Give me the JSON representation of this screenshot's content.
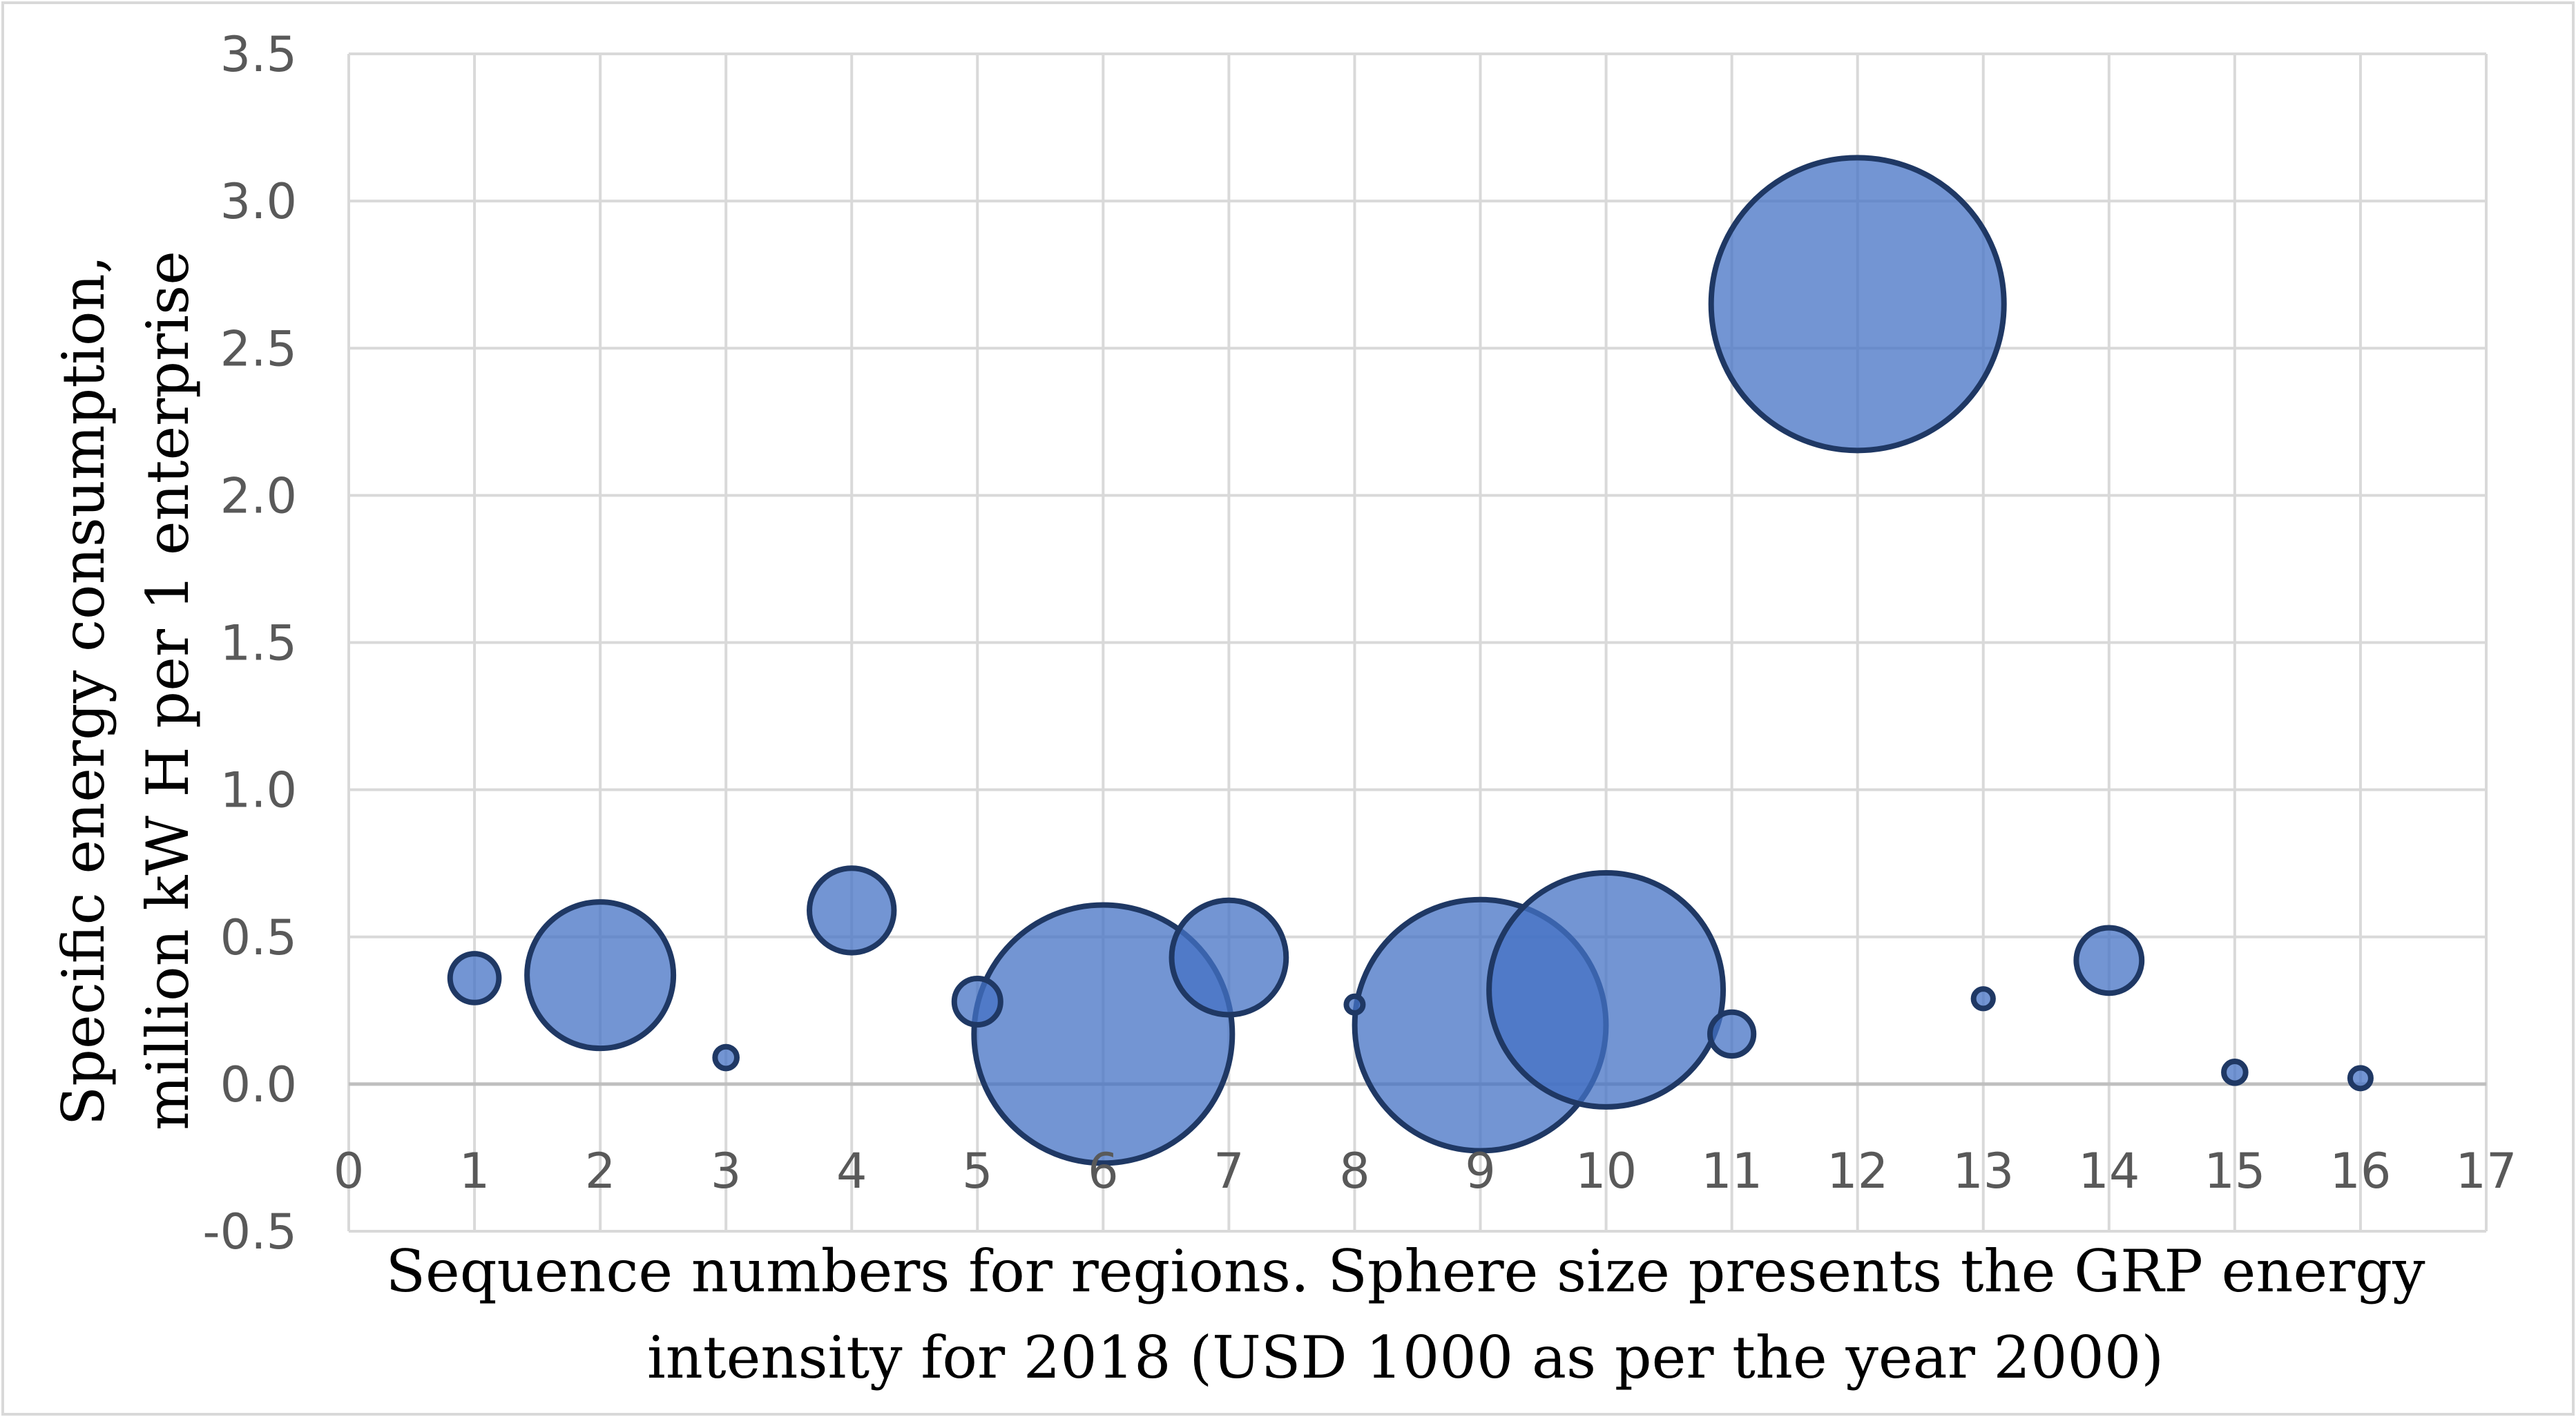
{
  "chart_data": {
    "type": "bubble",
    "title": "",
    "xlabel_lines": [
      "Sequence numbers for regions. Sphere size presents the GRP energy",
      "intensity for 2018 (USD 1000 as per the year 2000)"
    ],
    "ylabel_lines": [
      "Specific energy consumption,",
      "million kW H per 1 enterprise"
    ],
    "xlim": [
      0,
      17
    ],
    "ylim": [
      -0.5,
      3.5
    ],
    "x_ticks": [
      0,
      1,
      2,
      3,
      4,
      5,
      6,
      7,
      8,
      9,
      10,
      11,
      12,
      13,
      14,
      15,
      16,
      17
    ],
    "y_ticks": [
      -0.5,
      0.0,
      0.5,
      1.0,
      1.5,
      2.0,
      2.5,
      3.0,
      3.5
    ],
    "grid": true,
    "colors": {
      "fill": "#4472c4",
      "stroke": "#1f3864",
      "grid": "#d9d9d9",
      "tick_text": "#595959"
    },
    "series": [
      {
        "name": "Regions",
        "points": [
          {
            "x": 1,
            "y": 0.36,
            "size": 0.1
          },
          {
            "x": 2,
            "y": 0.37,
            "size": 0.9
          },
          {
            "x": 3,
            "y": 0.09,
            "size": 0.02
          },
          {
            "x": 4,
            "y": 0.59,
            "size": 0.3
          },
          {
            "x": 5,
            "y": 0.28,
            "size": 0.09
          },
          {
            "x": 6,
            "y": 0.17,
            "size": 2.8
          },
          {
            "x": 7,
            "y": 0.43,
            "size": 0.55
          },
          {
            "x": 8,
            "y": 0.27,
            "size": 0.007
          },
          {
            "x": 9,
            "y": 0.2,
            "size": 2.65
          },
          {
            "x": 10,
            "y": 0.32,
            "size": 2.3
          },
          {
            "x": 11,
            "y": 0.17,
            "size": 0.08
          },
          {
            "x": 12,
            "y": 2.65,
            "size": 3.6
          },
          {
            "x": 13,
            "y": 0.29,
            "size": 0.016
          },
          {
            "x": 14,
            "y": 0.42,
            "size": 0.18
          },
          {
            "x": 15,
            "y": 0.04,
            "size": 0.02
          },
          {
            "x": 16,
            "y": 0.02,
            "size": 0.018
          }
        ]
      }
    ]
  }
}
